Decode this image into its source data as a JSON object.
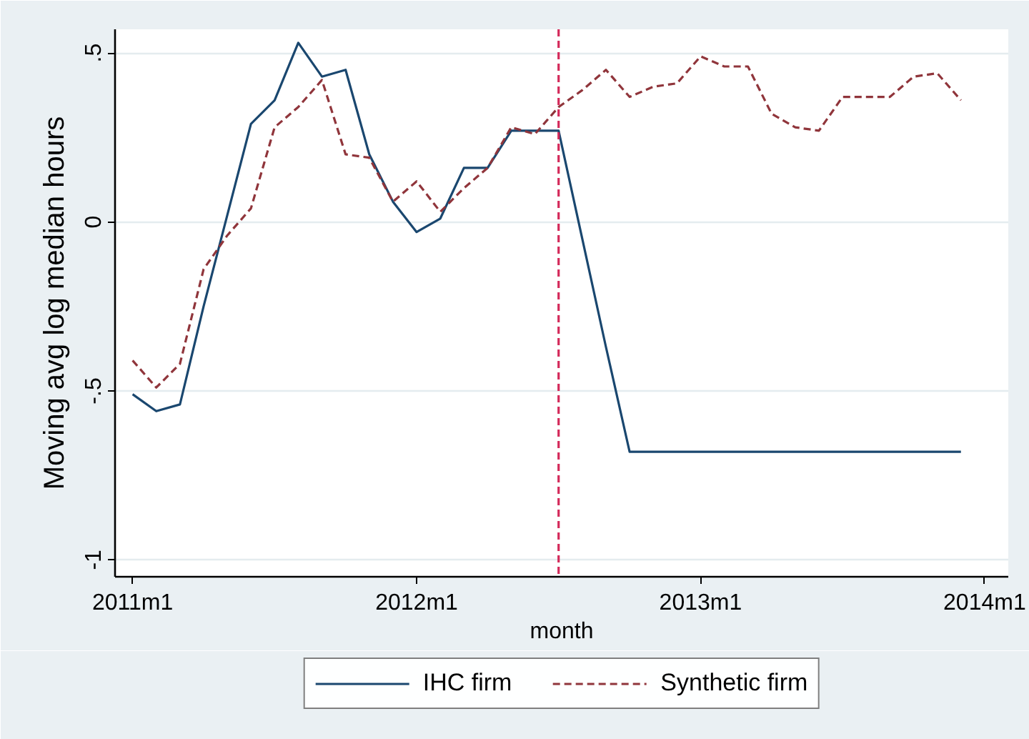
{
  "chart_data": {
    "type": "line",
    "xlabel": "month",
    "ylabel": "Moving avg log median hours",
    "x": [
      "2011-01",
      "2011-02",
      "2011-03",
      "2011-04",
      "2011-05",
      "2011-06",
      "2011-07",
      "2011-08",
      "2011-09",
      "2011-10",
      "2011-11",
      "2011-12",
      "2012-01",
      "2012-02",
      "2012-03",
      "2012-04",
      "2012-05",
      "2012-06",
      "2012-07",
      "2012-08",
      "2012-09",
      "2012-10",
      "2012-11",
      "2012-12",
      "2013-01",
      "2013-02",
      "2013-03",
      "2013-04",
      "2013-05",
      "2013-06",
      "2013-07",
      "2013-08",
      "2013-09",
      "2013-10",
      "2013-11",
      "2013-12"
    ],
    "series": [
      {
        "name": "IHC firm",
        "color": "#1a476f",
        "line_style": "solid",
        "values": [
          -0.51,
          -0.56,
          -0.54,
          -0.25,
          0.02,
          0.29,
          0.36,
          0.53,
          0.43,
          0.45,
          0.2,
          0.06,
          -0.03,
          0.01,
          0.16,
          0.16,
          0.27,
          0.27,
          0.27,
          -0.05,
          -0.37,
          -0.68,
          -0.68,
          -0.68,
          -0.68,
          -0.68,
          -0.68,
          -0.68,
          -0.68,
          -0.68,
          -0.68,
          -0.68,
          -0.68,
          -0.68,
          -0.68,
          -0.68
        ]
      },
      {
        "name": "Synthetic firm",
        "color": "#90353b",
        "line_style": "dashed",
        "values": [
          -0.41,
          -0.49,
          -0.42,
          -0.14,
          -0.04,
          0.04,
          0.28,
          0.34,
          0.42,
          0.2,
          0.19,
          0.06,
          0.12,
          0.03,
          0.1,
          0.16,
          0.28,
          0.26,
          0.34,
          0.39,
          0.45,
          0.37,
          0.4,
          0.41,
          0.49,
          0.46,
          0.46,
          0.32,
          0.28,
          0.27,
          0.37,
          0.37,
          0.37,
          0.43,
          0.44,
          0.36
        ]
      }
    ],
    "xlim": [
      "2010-12-09",
      "2014-02"
    ],
    "xticks": [
      {
        "value": "2011-01",
        "label": "2011m1"
      },
      {
        "value": "2012-01",
        "label": "2012m1"
      },
      {
        "value": "2013-01",
        "label": "2013m1"
      },
      {
        "value": "2014-01",
        "label": "2014m1"
      }
    ],
    "ylim": [
      -1.05,
      0.57
    ],
    "yticks": [
      {
        "value": -1,
        "label": "-1"
      },
      {
        "value": -0.5,
        "label": "-.5"
      },
      0,
      {
        "value": 0.5,
        "label": ".5"
      }
    ],
    "ref_lines": [
      {
        "axis": "x",
        "value": "2012-07",
        "color": "#d42a5a",
        "line_style": "dashed"
      }
    ],
    "grid": "y",
    "legend": "bottom"
  }
}
